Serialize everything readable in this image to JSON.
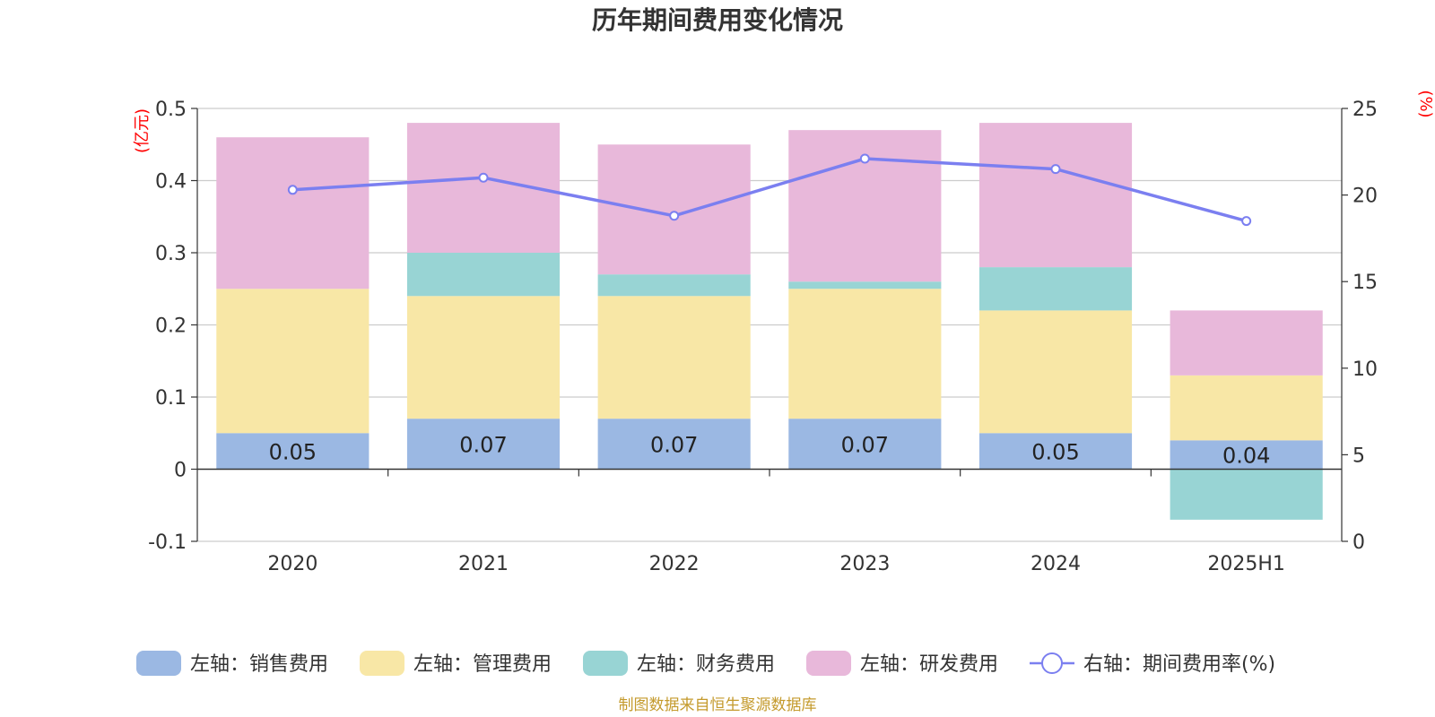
{
  "chart_data": {
    "type": "bar",
    "stacked": true,
    "title": "历年期间费用变化情况",
    "categories": [
      "2020",
      "2021",
      "2022",
      "2023",
      "2024",
      "2025H1"
    ],
    "left_axis": {
      "unit": "(亿元)",
      "ylim": [
        -0.1,
        0.5
      ],
      "ticks": [
        -0.1,
        0,
        0.1,
        0.2,
        0.3,
        0.4,
        0.5
      ],
      "tick_labels": [
        "-0.1",
        "0",
        "0.1",
        "0.2",
        "0.3",
        "0.4",
        "0.5"
      ]
    },
    "right_axis": {
      "unit": "(%)",
      "ylim": [
        0,
        25
      ],
      "ticks": [
        0,
        5,
        10,
        15,
        20,
        25
      ],
      "tick_labels": [
        "0",
        "5",
        "10",
        "15",
        "20",
        "25"
      ]
    },
    "series": [
      {
        "name": "左轴：销售费用",
        "type": "bar",
        "color": "#9bb8e3",
        "values": [
          0.05,
          0.07,
          0.07,
          0.07,
          0.05,
          0.04
        ],
        "data_labels": [
          "0.05",
          "0.07",
          "0.07",
          "0.07",
          "0.05",
          "0.04"
        ]
      },
      {
        "name": "左轴：管理费用",
        "type": "bar",
        "color": "#f8e7a6",
        "values": [
          0.2,
          0.17,
          0.17,
          0.18,
          0.17,
          0.09
        ]
      },
      {
        "name": "左轴：财务费用",
        "type": "bar",
        "color": "#98d4d4",
        "values": [
          0.0,
          0.06,
          0.03,
          0.01,
          0.06,
          -0.07
        ]
      },
      {
        "name": "左轴：研发费用",
        "type": "bar",
        "color": "#e8b8da",
        "values": [
          0.21,
          0.18,
          0.18,
          0.21,
          0.2,
          0.09
        ]
      },
      {
        "name": "右轴：期间费用率(%)",
        "type": "line",
        "axis": "right",
        "color": "#7b7ff0",
        "values": [
          20.3,
          21.0,
          18.8,
          22.1,
          21.5,
          18.5
        ]
      }
    ],
    "legend_position": "bottom",
    "source": "制图数据来自恒生聚源数据库"
  }
}
